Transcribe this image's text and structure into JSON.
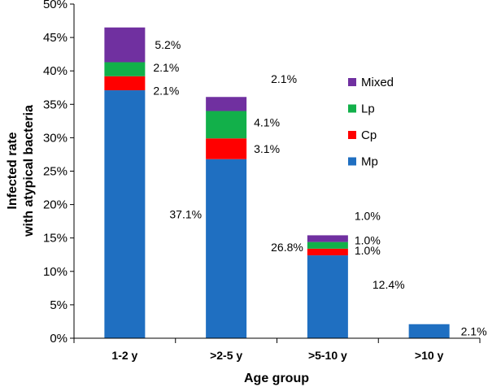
{
  "chart_data": {
    "type": "bar",
    "stacked": true,
    "categories": [
      "1-2 y",
      ">2-5 y",
      ">5-10 y",
      ">10 y"
    ],
    "series": [
      {
        "name": "Mp",
        "color": "#1f6fc1",
        "values": [
          37.1,
          26.8,
          12.4,
          2.1
        ],
        "labels": [
          "37.1%",
          "26.8%",
          "12.4%",
          "2.1%"
        ]
      },
      {
        "name": "Cp",
        "color": "#ff0000",
        "values": [
          2.1,
          3.1,
          1.0,
          0
        ],
        "labels": [
          "2.1%",
          "3.1%",
          "1.0%",
          ""
        ]
      },
      {
        "name": "Lp",
        "color": "#12b04a",
        "values": [
          2.1,
          4.1,
          1.0,
          0
        ],
        "labels": [
          "2.1%",
          "4.1%",
          "1.0%",
          ""
        ]
      },
      {
        "name": "Mixed",
        "color": "#7030a0",
        "values": [
          5.2,
          2.1,
          1.0,
          0
        ],
        "labels": [
          "5.2%",
          "2.1%",
          "1.0%",
          ""
        ]
      }
    ],
    "ylabel_lines": [
      "Infected rate",
      "with atypical bacteria"
    ],
    "xlabel": "Age group",
    "ylim": [
      0,
      50
    ],
    "yticks": [
      0,
      5,
      10,
      15,
      20,
      25,
      30,
      35,
      40,
      45,
      50
    ],
    "ytick_labels": [
      "0%",
      "5%",
      "10%",
      "15%",
      "20%",
      "25%",
      "30%",
      "35%",
      "40%",
      "45%",
      "50%"
    ],
    "legend_order": [
      "Mixed",
      "Lp",
      "Cp",
      "Mp"
    ],
    "legend_position": "top-right",
    "grid": false
  }
}
